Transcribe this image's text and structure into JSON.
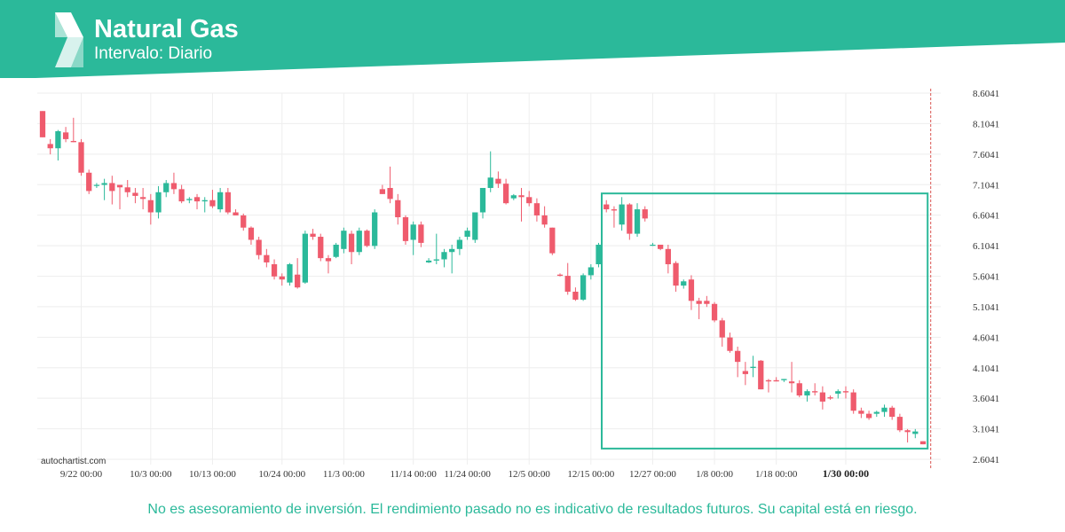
{
  "header": {
    "title": "Natural Gas",
    "subtitle": "Intervalo: Diario",
    "brand_color": "#2bb99a",
    "logo_icon": "autochartist-s-logo-icon"
  },
  "watermark": "autochartist.com",
  "disclaimer": "No es asesoramiento de inversión. El rendimiento pasado no es indicativo de resultados futuros. Su capital está en riesgo.",
  "colors": {
    "up": "#2bb99a",
    "down": "#ef5b6d",
    "grid": "#eeeeee",
    "pattern_box": "#2bb99a",
    "current_time_line": "#d9534f"
  },
  "chart_data": {
    "type": "candlestick",
    "title": "Natural Gas",
    "interval": "Diario",
    "ylim": [
      2.6041,
      8.6041
    ],
    "y_ticks": [
      "8.6041",
      "8.1041",
      "7.6041",
      "7.1041",
      "6.6041",
      "6.1041",
      "5.6041",
      "5.1041",
      "4.6041",
      "4.1041",
      "3.6041",
      "3.1041",
      "2.6041"
    ],
    "x_ticks": [
      {
        "label": "9/22 00:00",
        "index": 5
      },
      {
        "label": "10/3 00:00",
        "index": 14
      },
      {
        "label": "10/13 00:00",
        "index": 22
      },
      {
        "label": "10/24 00:00",
        "index": 31
      },
      {
        "label": "11/3 00:00",
        "index": 39
      },
      {
        "label": "11/14 00:00",
        "index": 48
      },
      {
        "label": "11/24 00:00",
        "index": 55
      },
      {
        "label": "12/5 00:00",
        "index": 63
      },
      {
        "label": "12/15 00:00",
        "index": 71
      },
      {
        "label": "12/27 00:00",
        "index": 79
      },
      {
        "label": "1/8 00:00",
        "index": 87
      },
      {
        "label": "1/18 00:00",
        "index": 95
      },
      {
        "label": "1/30 00:00",
        "index": 104,
        "bold": true
      }
    ],
    "candles": [
      [
        8.31,
        8.31,
        7.88,
        7.88
      ],
      [
        7.77,
        7.85,
        7.6,
        7.7
      ],
      [
        7.7,
        8.0,
        7.5,
        7.98
      ],
      [
        7.96,
        8.05,
        7.8,
        7.85
      ],
      [
        7.82,
        8.2,
        7.8,
        7.8
      ],
      [
        7.8,
        7.85,
        7.25,
        7.3
      ],
      [
        7.3,
        7.35,
        6.95,
        7.0
      ],
      [
        7.1,
        7.13,
        7.05,
        7.1
      ],
      [
        7.1,
        7.2,
        6.85,
        7.13
      ],
      [
        7.13,
        7.25,
        6.78,
        7.0
      ],
      [
        7.1,
        7.1,
        6.7,
        7.06
      ],
      [
        7.06,
        7.18,
        6.9,
        6.98
      ],
      [
        6.97,
        7.05,
        6.8,
        6.92
      ],
      [
        6.9,
        7.05,
        6.7,
        6.87
      ],
      [
        6.85,
        6.95,
        6.45,
        6.65
      ],
      [
        6.65,
        7.08,
        6.55,
        6.98
      ],
      [
        6.98,
        7.18,
        6.9,
        7.13
      ],
      [
        7.13,
        7.3,
        6.95,
        7.03
      ],
      [
        7.03,
        7.1,
        6.8,
        6.83
      ],
      [
        6.85,
        6.9,
        6.8,
        6.87
      ],
      [
        6.9,
        6.95,
        6.7,
        6.83
      ],
      [
        6.83,
        6.9,
        6.65,
        6.85
      ],
      [
        6.85,
        7.02,
        6.72,
        6.75
      ],
      [
        6.7,
        7.05,
        6.65,
        6.98
      ],
      [
        6.98,
        7.05,
        6.62,
        6.65
      ],
      [
        6.65,
        6.7,
        6.62,
        6.6
      ],
      [
        6.6,
        6.63,
        6.35,
        6.4
      ],
      [
        6.4,
        6.42,
        6.12,
        6.2
      ],
      [
        6.2,
        6.25,
        5.88,
        5.95
      ],
      [
        5.95,
        6.05,
        5.75,
        5.83
      ],
      [
        5.8,
        5.88,
        5.55,
        5.6
      ],
      [
        5.6,
        5.65,
        5.45,
        5.55
      ],
      [
        5.5,
        5.82,
        5.45,
        5.8
      ],
      [
        5.63,
        5.9,
        5.4,
        5.42
      ],
      [
        5.5,
        6.35,
        5.48,
        6.3
      ],
      [
        6.3,
        6.38,
        6.2,
        6.25
      ],
      [
        6.25,
        6.3,
        5.85,
        5.9
      ],
      [
        5.9,
        5.95,
        5.65,
        5.85
      ],
      [
        5.92,
        6.15,
        5.9,
        6.12
      ],
      [
        6.05,
        6.4,
        5.98,
        6.35
      ],
      [
        6.3,
        6.35,
        5.8,
        6.0
      ],
      [
        6.0,
        6.4,
        5.95,
        6.35
      ],
      [
        6.35,
        6.37,
        6.08,
        6.1
      ],
      [
        6.1,
        6.7,
        6.05,
        6.65
      ],
      [
        7.03,
        7.1,
        6.95,
        6.95
      ],
      [
        7.05,
        7.4,
        6.8,
        6.87
      ],
      [
        6.85,
        6.95,
        6.45,
        6.57
      ],
      [
        6.57,
        6.6,
        6.12,
        6.18
      ],
      [
        6.2,
        6.5,
        5.95,
        6.45
      ],
      [
        6.45,
        6.5,
        6.08,
        6.15
      ],
      [
        5.83,
        5.9,
        5.82,
        5.86
      ],
      [
        5.86,
        6.3,
        5.8,
        5.88
      ],
      [
        5.88,
        6.05,
        5.75,
        6.0
      ],
      [
        6.0,
        6.12,
        5.65,
        6.05
      ],
      [
        6.05,
        6.25,
        5.95,
        6.2
      ],
      [
        6.25,
        6.4,
        6.2,
        6.35
      ],
      [
        6.2,
        6.65,
        6.15,
        6.65
      ],
      [
        6.65,
        7.05,
        6.55,
        7.05
      ],
      [
        7.05,
        7.65,
        6.98,
        7.22
      ],
      [
        7.2,
        7.32,
        7.05,
        7.12
      ],
      [
        7.12,
        7.2,
        6.78,
        6.8
      ],
      [
        6.88,
        6.95,
        6.85,
        6.93
      ],
      [
        6.93,
        7.05,
        6.5,
        6.9
      ],
      [
        6.9,
        7.0,
        6.75,
        6.8
      ],
      [
        6.8,
        6.88,
        6.5,
        6.6
      ],
      [
        6.6,
        6.75,
        6.4,
        6.45
      ],
      [
        6.4,
        6.4,
        5.95,
        5.98
      ],
      [
        5.63,
        5.65,
        5.6,
        5.61
      ],
      [
        5.61,
        5.82,
        5.3,
        5.35
      ],
      [
        5.35,
        5.42,
        5.2,
        5.22
      ],
      [
        5.22,
        5.65,
        5.2,
        5.62
      ],
      [
        5.62,
        5.8,
        5.55,
        5.75
      ],
      [
        5.8,
        6.15,
        5.75,
        6.12
      ],
      [
        6.78,
        6.85,
        6.65,
        6.7
      ],
      [
        6.7,
        6.75,
        6.4,
        6.68
      ],
      [
        6.45,
        6.9,
        6.35,
        6.78
      ],
      [
        6.78,
        6.8,
        6.2,
        6.3
      ],
      [
        6.3,
        6.8,
        6.25,
        6.7
      ],
      [
        6.7,
        6.75,
        6.5,
        6.55
      ],
      [
        6.12,
        6.15,
        6.1,
        6.12
      ],
      [
        6.12,
        6.1,
        6.03,
        6.05
      ],
      [
        6.05,
        6.12,
        5.65,
        5.8
      ],
      [
        5.82,
        5.85,
        5.35,
        5.45
      ],
      [
        5.45,
        5.55,
        5.4,
        5.52
      ],
      [
        5.55,
        5.62,
        5.05,
        5.2
      ],
      [
        5.2,
        5.25,
        4.9,
        5.15
      ],
      [
        5.2,
        5.28,
        5.1,
        5.15
      ],
      [
        5.15,
        5.18,
        4.85,
        4.88
      ],
      [
        4.88,
        4.92,
        4.45,
        4.6
      ],
      [
        4.6,
        4.68,
        4.35,
        4.38
      ],
      [
        4.38,
        4.45,
        3.95,
        4.2
      ],
      [
        4.05,
        4.2,
        3.82,
        4.0
      ],
      [
        4.1,
        4.3,
        3.95,
        4.12
      ],
      [
        4.22,
        4.23,
        3.75,
        3.75
      ],
      [
        3.9,
        3.92,
        3.7,
        3.88
      ],
      [
        3.9,
        3.95,
        3.88,
        3.88
      ],
      [
        3.9,
        3.92,
        3.87,
        3.92
      ],
      [
        3.88,
        4.2,
        3.7,
        3.85
      ],
      [
        3.85,
        3.9,
        3.62,
        3.65
      ],
      [
        3.65,
        3.75,
        3.55,
        3.72
      ],
      [
        3.72,
        3.85,
        3.65,
        3.7
      ],
      [
        3.7,
        3.8,
        3.42,
        3.55
      ],
      [
        3.62,
        3.65,
        3.58,
        3.6
      ],
      [
        3.68,
        3.75,
        3.6,
        3.72
      ],
      [
        3.72,
        3.8,
        3.6,
        3.7
      ],
      [
        3.7,
        3.75,
        3.35,
        3.4
      ],
      [
        3.4,
        3.45,
        3.28,
        3.35
      ],
      [
        3.35,
        3.4,
        3.25,
        3.28
      ],
      [
        3.35,
        3.4,
        3.3,
        3.38
      ],
      [
        3.38,
        3.5,
        3.3,
        3.45
      ],
      [
        3.45,
        3.48,
        3.25,
        3.3
      ],
      [
        3.3,
        3.35,
        3.05,
        3.08
      ],
      [
        3.08,
        3.1,
        2.88,
        3.05
      ],
      [
        3.02,
        3.1,
        2.95,
        3.06
      ],
      [
        2.9,
        2.9,
        2.85,
        2.85
      ]
    ],
    "pattern": {
      "start_index": 73,
      "end_index": 114,
      "top": 6.96,
      "bottom": 2.78
    },
    "current_marker_index": 115
  }
}
